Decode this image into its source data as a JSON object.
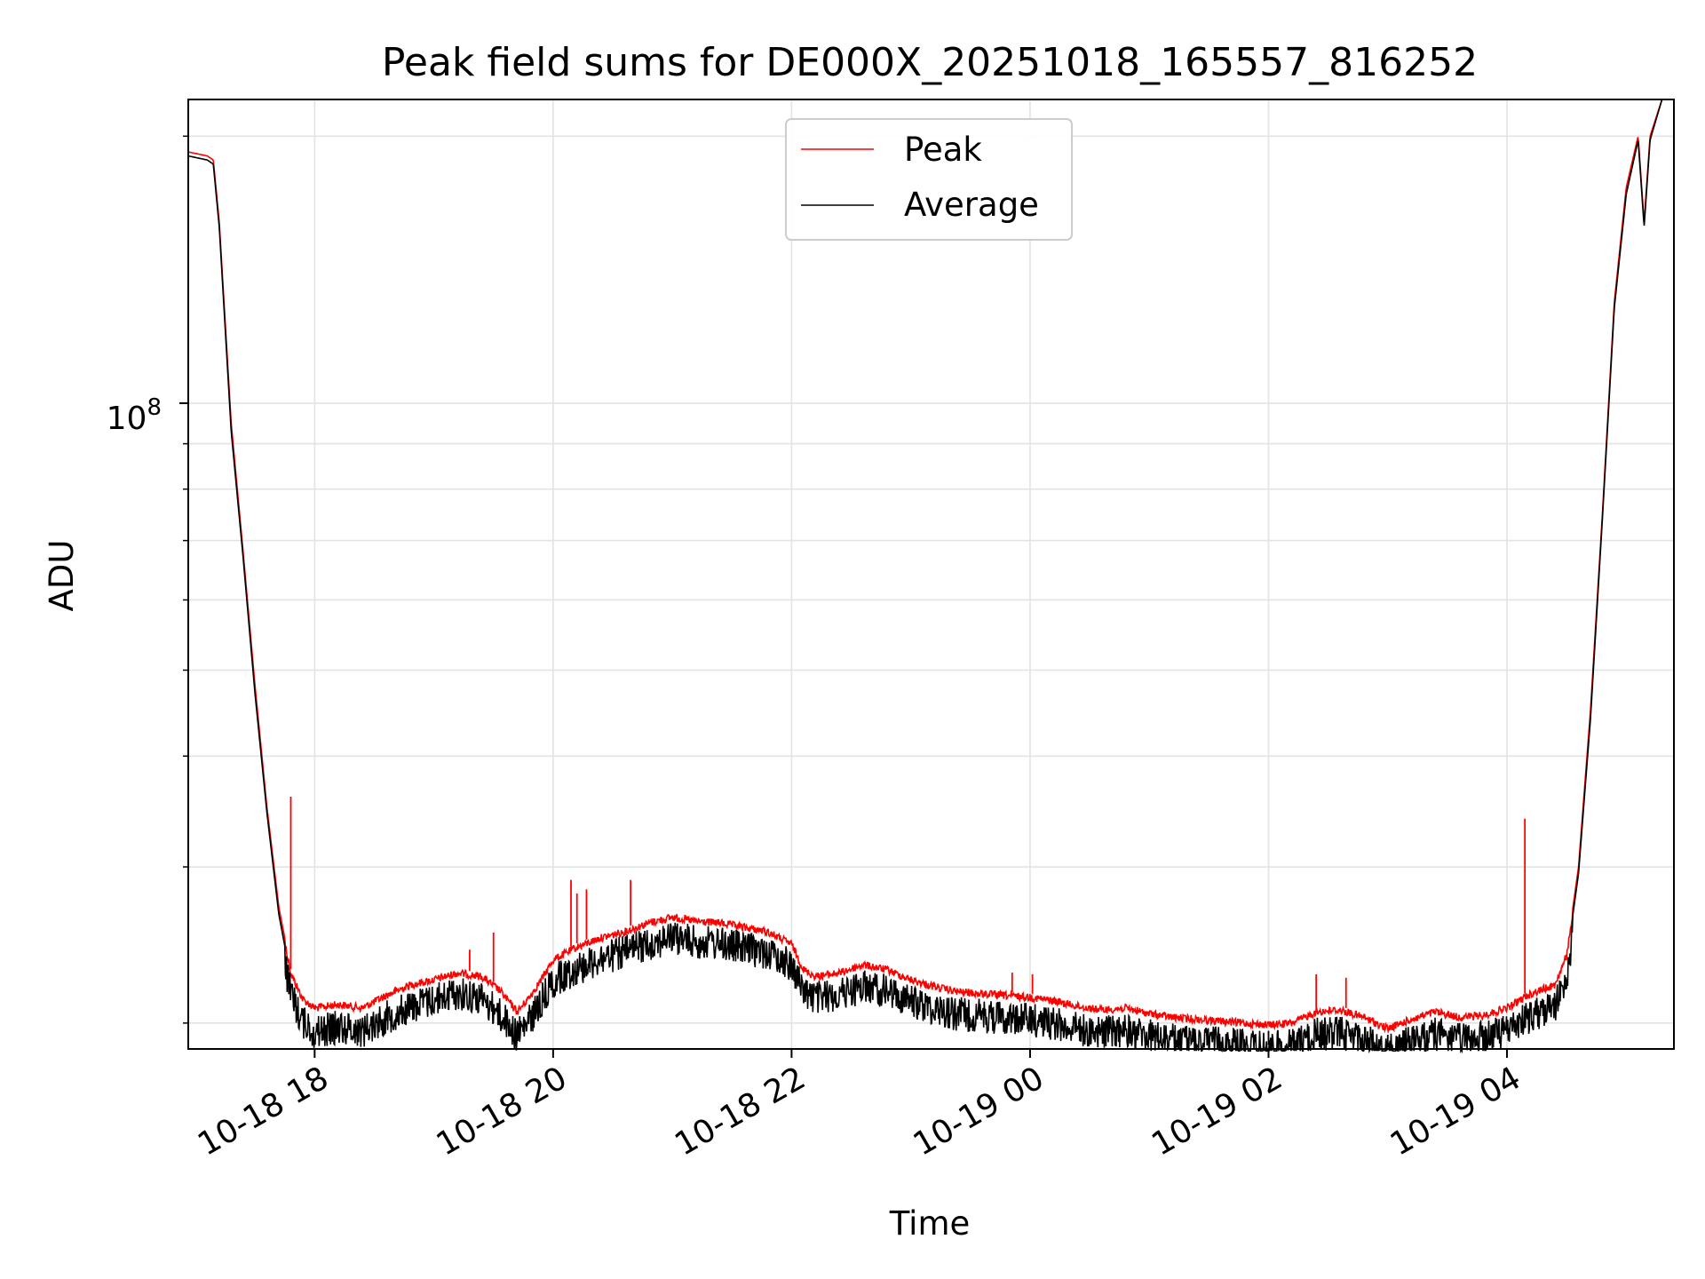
{
  "chart_data": {
    "type": "line",
    "title": "Peak field sums for DE000X_20251018_165557_816252",
    "xlabel": "Time",
    "ylabel": "ADU",
    "yscale": "log",
    "xlim_hours": [
      16.94,
      29.4
    ],
    "ylim": [
      18700000,
      220000000
    ],
    "y_tick_label": {
      "base": "10",
      "exponent": "8",
      "value": 100000000
    },
    "x_ticks": [
      {
        "label": "10-18 18",
        "hours": 18
      },
      {
        "label": "10-18 20",
        "hours": 20
      },
      {
        "label": "10-18 22",
        "hours": 22
      },
      {
        "label": "10-19 00",
        "hours": 24
      },
      {
        "label": "10-19 02",
        "hours": 26
      },
      {
        "label": "10-19 04",
        "hours": 28
      }
    ],
    "grid": true,
    "legend_position": "top-center",
    "series": [
      {
        "name": "Peak",
        "color": "#ff0000",
        "note": "approximate envelope (hours, ADU)",
        "x": [
          16.94,
          17.1,
          17.15,
          17.2,
          17.3,
          17.4,
          17.5,
          17.6,
          17.7,
          17.8,
          17.9,
          18.0,
          18.2,
          18.4,
          18.6,
          18.8,
          19.0,
          19.2,
          19.4,
          19.55,
          19.7,
          19.8,
          19.9,
          20.0,
          20.2,
          20.4,
          20.6,
          20.8,
          21.0,
          21.2,
          21.4,
          21.6,
          21.8,
          22.0,
          22.1,
          22.2,
          22.4,
          22.6,
          22.8,
          23.0,
          23.2,
          23.4,
          23.6,
          23.8,
          24.0,
          24.2,
          24.4,
          24.6,
          24.8,
          25.0,
          25.2,
          25.4,
          25.6,
          25.8,
          26.0,
          26.2,
          26.4,
          26.6,
          26.8,
          27.0,
          27.2,
          27.4,
          27.6,
          27.8,
          28.0,
          28.2,
          28.4,
          28.5,
          28.6,
          28.7,
          28.8,
          28.9,
          29.0,
          29.1,
          29.15,
          29.2,
          29.3,
          29.4
        ],
        "y": [
          192000000,
          190000000,
          188000000,
          160000000,
          95000000,
          68000000,
          48000000,
          35000000,
          27000000,
          23000000,
          21500000,
          21000000,
          21200000,
          21000000,
          21700000,
          22300000,
          22600000,
          23000000,
          22800000,
          22000000,
          20800000,
          21600000,
          22600000,
          23800000,
          24600000,
          25200000,
          25600000,
          26200000,
          26600000,
          26300000,
          26200000,
          25900000,
          25600000,
          24800000,
          23200000,
          22800000,
          23000000,
          23500000,
          23200000,
          22600000,
          22200000,
          21900000,
          21800000,
          21700000,
          21600000,
          21400000,
          21100000,
          20900000,
          21000000,
          20700000,
          20500000,
          20400000,
          20300000,
          20200000,
          20100000,
          20200000,
          20800000,
          20900000,
          20500000,
          19900000,
          20400000,
          20800000,
          20500000,
          20600000,
          21000000,
          21800000,
          22300000,
          24000000,
          30000000,
          45000000,
          75000000,
          130000000,
          175000000,
          200000000,
          160000000,
          200000000,
          220000000,
          220000000
        ]
      },
      {
        "name": "Average",
        "color": "#000000",
        "note": "approximate envelope (hours, ADU)",
        "x": [
          16.94,
          17.1,
          17.15,
          17.2,
          17.3,
          17.4,
          17.5,
          17.6,
          17.7,
          17.8,
          17.9,
          18.0,
          18.2,
          18.4,
          18.6,
          18.8,
          19.0,
          19.2,
          19.4,
          19.55,
          19.7,
          19.8,
          19.9,
          20.0,
          20.2,
          20.4,
          20.6,
          20.8,
          21.0,
          21.2,
          21.4,
          21.6,
          21.8,
          22.0,
          22.1,
          22.2,
          22.4,
          22.6,
          22.8,
          23.0,
          23.2,
          23.4,
          23.6,
          23.8,
          24.0,
          24.2,
          24.4,
          24.6,
          24.8,
          25.0,
          25.2,
          25.4,
          25.6,
          25.8,
          26.0,
          26.2,
          26.4,
          26.6,
          26.8,
          27.0,
          27.2,
          27.4,
          27.6,
          27.8,
          28.0,
          28.2,
          28.4,
          28.5,
          28.6,
          28.7,
          28.8,
          28.9,
          29.0,
          29.1,
          29.15,
          29.2,
          29.3,
          29.4
        ],
        "y": [
          190000000,
          188000000,
          186000000,
          158000000,
          93000000,
          67000000,
          47000000,
          34500000,
          26500000,
          22500000,
          21000000,
          20400000,
          20700000,
          20500000,
          21200000,
          21800000,
          22200000,
          22600000,
          22300000,
          21400000,
          20200000,
          21000000,
          22100000,
          23300000,
          24100000,
          24700000,
          25100000,
          25700000,
          26100000,
          25800000,
          25700000,
          25400000,
          25100000,
          24300000,
          22700000,
          22300000,
          22500000,
          23000000,
          22700000,
          22100000,
          21700000,
          21400000,
          21300000,
          21200000,
          21100000,
          20900000,
          20600000,
          20400000,
          20500000,
          20200000,
          20000000,
          19900000,
          19800000,
          19700000,
          19600000,
          19700000,
          20300000,
          20400000,
          20000000,
          19400000,
          19900000,
          20300000,
          20000000,
          20100000,
          20500000,
          21300000,
          21800000,
          23500000,
          29500000,
          44000000,
          74000000,
          128000000,
          172000000,
          198000000,
          158000000,
          198000000,
          220000000,
          220000000
        ]
      }
    ],
    "peak_spikes": [
      {
        "hours": 17.8,
        "value": 36000000
      },
      {
        "hours": 19.3,
        "value": 24200000
      },
      {
        "hours": 19.5,
        "value": 25300000
      },
      {
        "hours": 20.15,
        "value": 29000000
      },
      {
        "hours": 20.2,
        "value": 28000000
      },
      {
        "hours": 20.28,
        "value": 28300000
      },
      {
        "hours": 20.65,
        "value": 29000000
      },
      {
        "hours": 23.85,
        "value": 22800000
      },
      {
        "hours": 24.02,
        "value": 22700000
      },
      {
        "hours": 26.4,
        "value": 22700000
      },
      {
        "hours": 26.65,
        "value": 22500000
      },
      {
        "hours": 28.15,
        "value": 34000000
      }
    ],
    "average_dips": [
      {
        "hours": 19.72,
        "value": 19200000
      },
      {
        "hours": 26.0,
        "value": 18900000
      },
      {
        "hours": 27.0,
        "value": 18800000
      }
    ]
  }
}
